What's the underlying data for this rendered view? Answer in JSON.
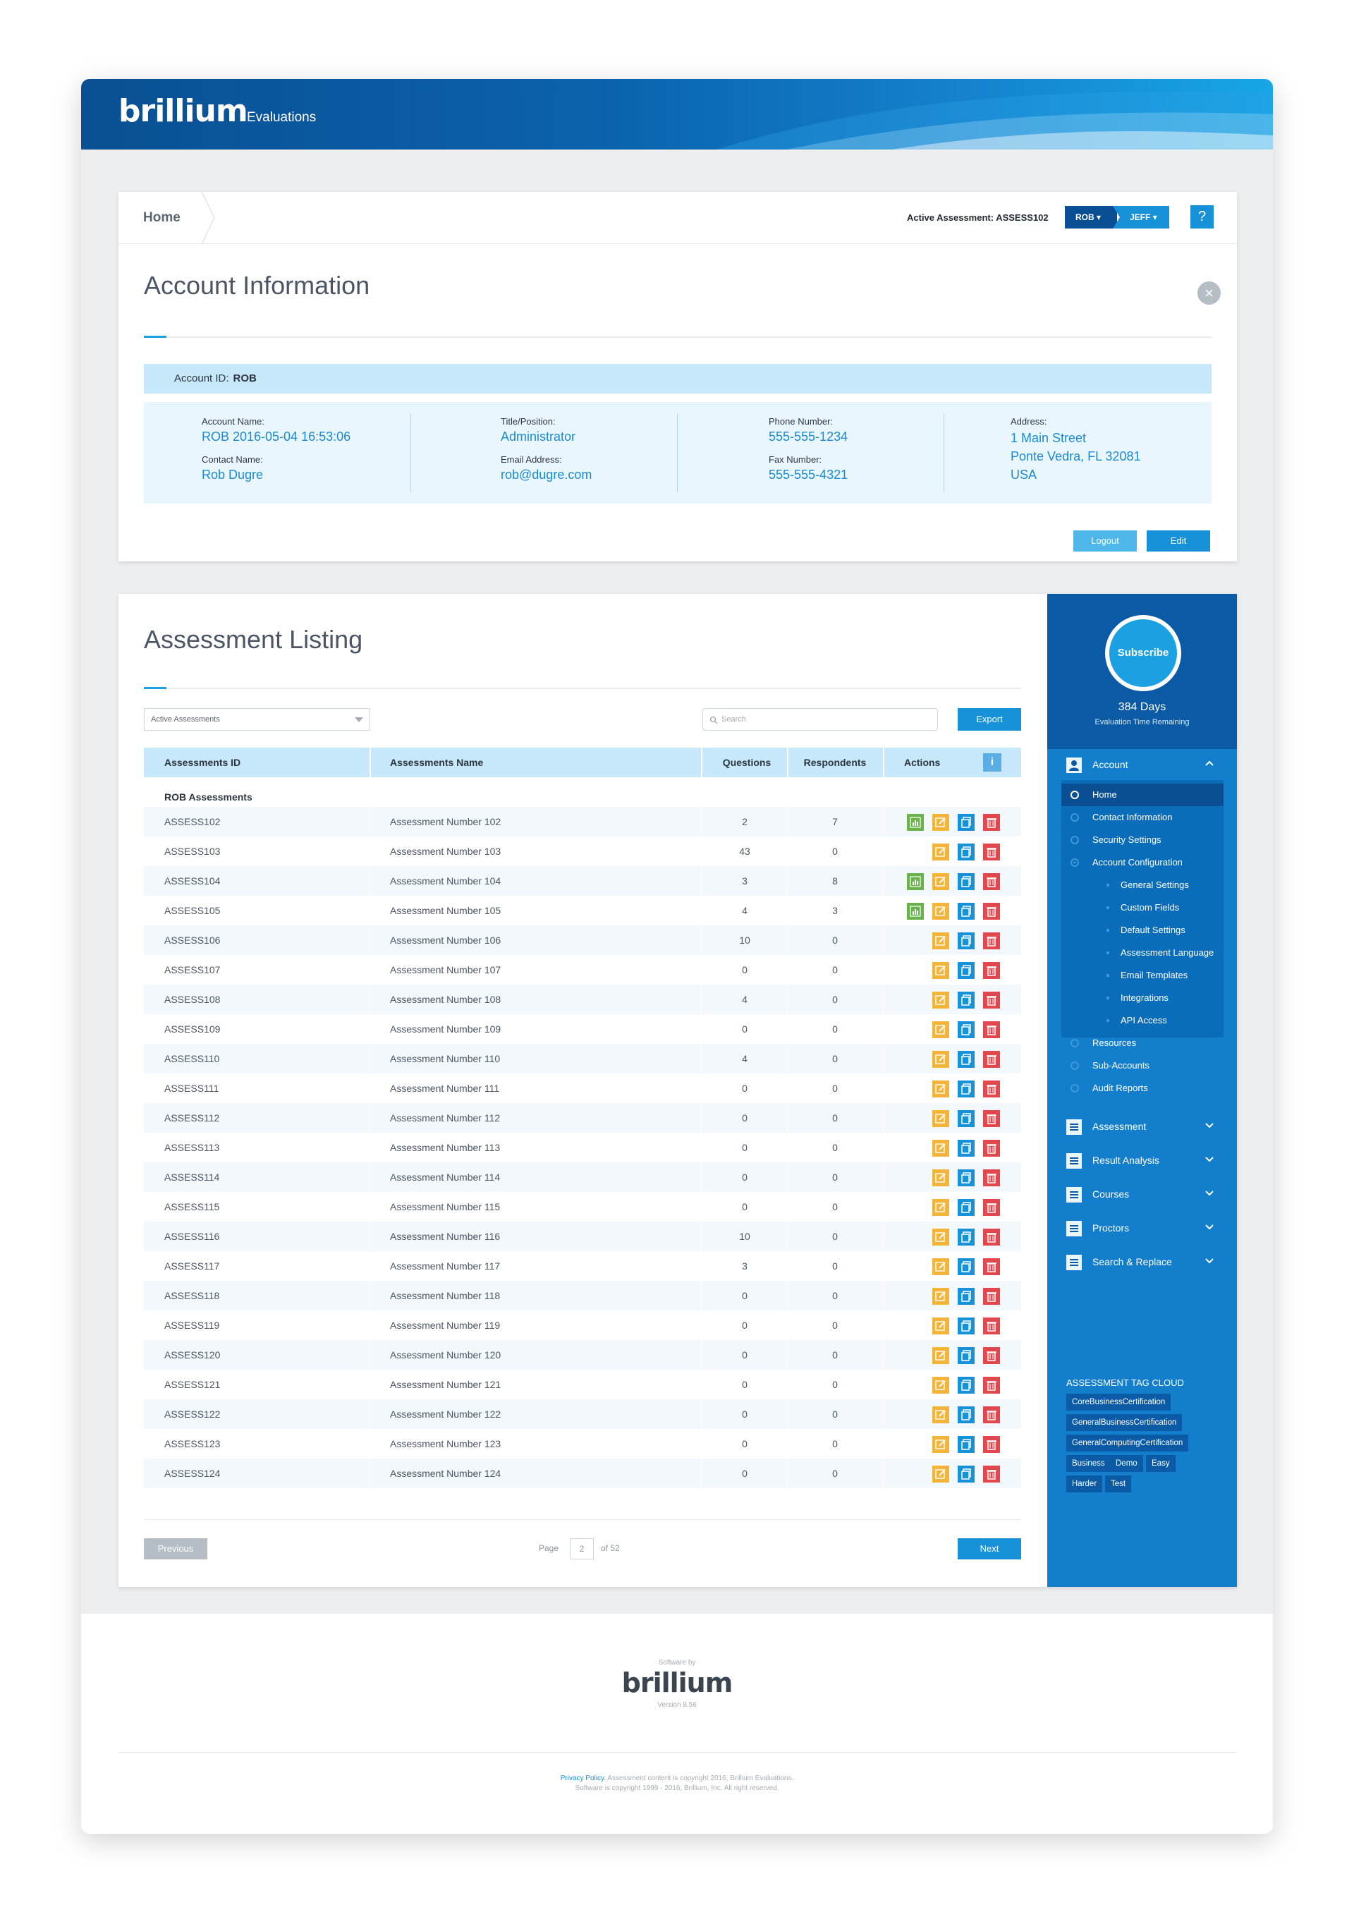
{
  "header": {
    "logo": "brillium",
    "subtitle": "Evaluations"
  },
  "breadcrumb": {
    "home": "Home"
  },
  "topbar": {
    "active_assessment": "Active Assessment: ASSESS102",
    "user1": "ROB",
    "user2": "JEFF",
    "help": "?"
  },
  "account": {
    "title": "Account Information",
    "id_label": "Account ID:",
    "id_value": "ROB",
    "account_name_label": "Account Name:",
    "account_name": "ROB 2016-05-04 16:53:06",
    "contact_name_label": "Contact Name:",
    "contact_name": "Rob Dugre",
    "title_label": "Title/Position:",
    "title_value": "Administrator",
    "email_label": "Email Address:",
    "email": "rob@dugre.com",
    "phone_label": "Phone Number:",
    "phone": "555-555-1234",
    "fax_label": "Fax Number:",
    "fax": "555-555-4321",
    "address_label": "Address:",
    "address_line1": "1 Main Street",
    "address_line2": "Ponte Vedra, FL 32081",
    "address_line3": "USA",
    "logout": "Logout",
    "edit": "Edit"
  },
  "listing": {
    "title": "Assessment Listing",
    "filter": "Active Assessments",
    "search_placeholder": "Search",
    "export": "Export",
    "columns": [
      "Assessments ID",
      "Assessments Name",
      "Questions",
      "Respondents",
      "Actions"
    ],
    "group": "ROB Assessments",
    "rows": [
      {
        "id": "ASSESS102",
        "name": "Assessment Number 102",
        "q": "2",
        "r": "7",
        "graph": true
      },
      {
        "id": "ASSESS103",
        "name": "Assessment Number 103",
        "q": "43",
        "r": "0",
        "graph": false
      },
      {
        "id": "ASSESS104",
        "name": "Assessment Number 104",
        "q": "3",
        "r": "8",
        "graph": true
      },
      {
        "id": "ASSESS105",
        "name": "Assessment Number 105",
        "q": "4",
        "r": "3",
        "graph": true
      },
      {
        "id": "ASSESS106",
        "name": "Assessment Number 106",
        "q": "10",
        "r": "0",
        "graph": false
      },
      {
        "id": "ASSESS107",
        "name": "Assessment Number 107",
        "q": "0",
        "r": "0",
        "graph": false
      },
      {
        "id": "ASSESS108",
        "name": "Assessment Number 108",
        "q": "4",
        "r": "0",
        "graph": false
      },
      {
        "id": "ASSESS109",
        "name": "Assessment Number 109",
        "q": "0",
        "r": "0",
        "graph": false
      },
      {
        "id": "ASSESS110",
        "name": "Assessment Number 110",
        "q": "4",
        "r": "0",
        "graph": false
      },
      {
        "id": "ASSESS111",
        "name": "Assessment Number 111",
        "q": "0",
        "r": "0",
        "graph": false
      },
      {
        "id": "ASSESS112",
        "name": "Assessment Number 112",
        "q": "0",
        "r": "0",
        "graph": false
      },
      {
        "id": "ASSESS113",
        "name": "Assessment Number 113",
        "q": "0",
        "r": "0",
        "graph": false
      },
      {
        "id": "ASSESS114",
        "name": "Assessment Number 114",
        "q": "0",
        "r": "0",
        "graph": false
      },
      {
        "id": "ASSESS115",
        "name": "Assessment Number 115",
        "q": "0",
        "r": "0",
        "graph": false
      },
      {
        "id": "ASSESS116",
        "name": "Assessment Number 116",
        "q": "10",
        "r": "0",
        "graph": false
      },
      {
        "id": "ASSESS117",
        "name": "Assessment Number 117",
        "q": "3",
        "r": "0",
        "graph": false
      },
      {
        "id": "ASSESS118",
        "name": "Assessment Number 118",
        "q": "0",
        "r": "0",
        "graph": false
      },
      {
        "id": "ASSESS119",
        "name": "Assessment Number 119",
        "q": "0",
        "r": "0",
        "graph": false
      },
      {
        "id": "ASSESS120",
        "name": "Assessment Number 120",
        "q": "0",
        "r": "0",
        "graph": false
      },
      {
        "id": "ASSESS121",
        "name": "Assessment Number 121",
        "q": "0",
        "r": "0",
        "graph": false
      },
      {
        "id": "ASSESS122",
        "name": "Assessment Number 122",
        "q": "0",
        "r": "0",
        "graph": false
      },
      {
        "id": "ASSESS123",
        "name": "Assessment Number 123",
        "q": "0",
        "r": "0",
        "graph": false
      },
      {
        "id": "ASSESS124",
        "name": "Assessment Number 124",
        "q": "0",
        "r": "0",
        "graph": false
      }
    ],
    "previous": "Previous",
    "page_label": "Page",
    "page_value": "2",
    "page_of": "of 52",
    "next": "Next"
  },
  "sidebar": {
    "subscribe": "Subscribe",
    "days": "384 Days",
    "days_sub": "Evaluation Time Remaining",
    "account": "Account",
    "account_items": [
      "Home",
      "Contact Information",
      "Security Settings",
      "Account Configuration"
    ],
    "config_items": [
      "General Settings",
      "Custom Fields",
      "Default Settings",
      "Assessment Language",
      "Email Templates",
      "Integrations",
      "API Access"
    ],
    "account_items2": [
      "Resources",
      "Sub-Accounts",
      "Audit Reports"
    ],
    "sections": [
      "Assessment",
      "Result Analysis",
      "Courses",
      "Proctors",
      "Search & Replace"
    ],
    "tag_title": "ASSESSMENT TAG CLOUD",
    "tags": [
      "CoreBusinessCertification",
      "GeneralBusinessCertification",
      "GeneralComputingCertification",
      "Business",
      "Demo",
      "Easy",
      "Harder",
      "Test"
    ]
  },
  "footer": {
    "software_by": "Software by",
    "logo": "brillium",
    "version": "Version 8.56",
    "privacy": "Privacy Policy.",
    "copy1": " Assessment content is copyright 2016, Brillium Evaluations.",
    "copy2": "Software is copyright 1999 - 2016, Brillium, Inc. All right reserved."
  },
  "colors": {
    "brand": "#0a4f93",
    "accent": "#1792d8",
    "graph": "#6ab24b",
    "edit": "#f2b53a",
    "delete": "#e1474c"
  }
}
